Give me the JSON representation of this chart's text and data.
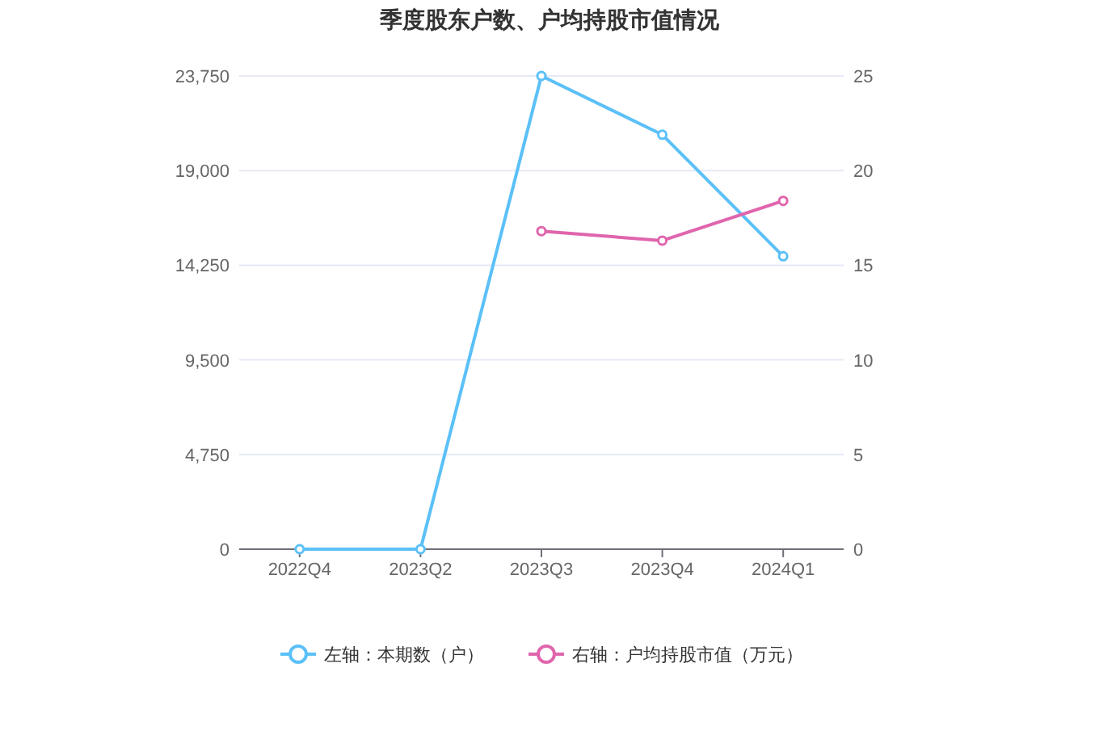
{
  "chart_data": {
    "type": "line",
    "title": "季度股东户数、户均持股市值情况",
    "categories": [
      "2022Q4",
      "2023Q2",
      "2023Q3",
      "2023Q4",
      "2024Q1"
    ],
    "series": [
      {
        "name": "左轴：本期数（户）",
        "color": "#5bc0f8",
        "values": [
          0,
          0,
          23750,
          20800,
          14700
        ]
      },
      {
        "name": "右轴：户均持股市值（万元）",
        "color": "#e065ad",
        "axis": "y2",
        "values": [
          null,
          null,
          16.8,
          16.3,
          18.4
        ]
      }
    ],
    "ylim": [
      0,
      23750
    ],
    "yticks": [
      0,
      {
        "value": 4750,
        "label": "4,750"
      },
      {
        "value": 9500,
        "label": "9,500"
      },
      {
        "value": 14250,
        "label": "14,250"
      },
      {
        "value": 19000,
        "label": "19,000"
      },
      {
        "value": 23750,
        "label": "23,750"
      }
    ],
    "y2lim": [
      0,
      25
    ],
    "y2ticks": [
      0,
      5,
      10,
      15,
      20,
      25
    ],
    "grid": "y",
    "legend": "bottom",
    "marker": "circle",
    "line_style": "solid"
  }
}
